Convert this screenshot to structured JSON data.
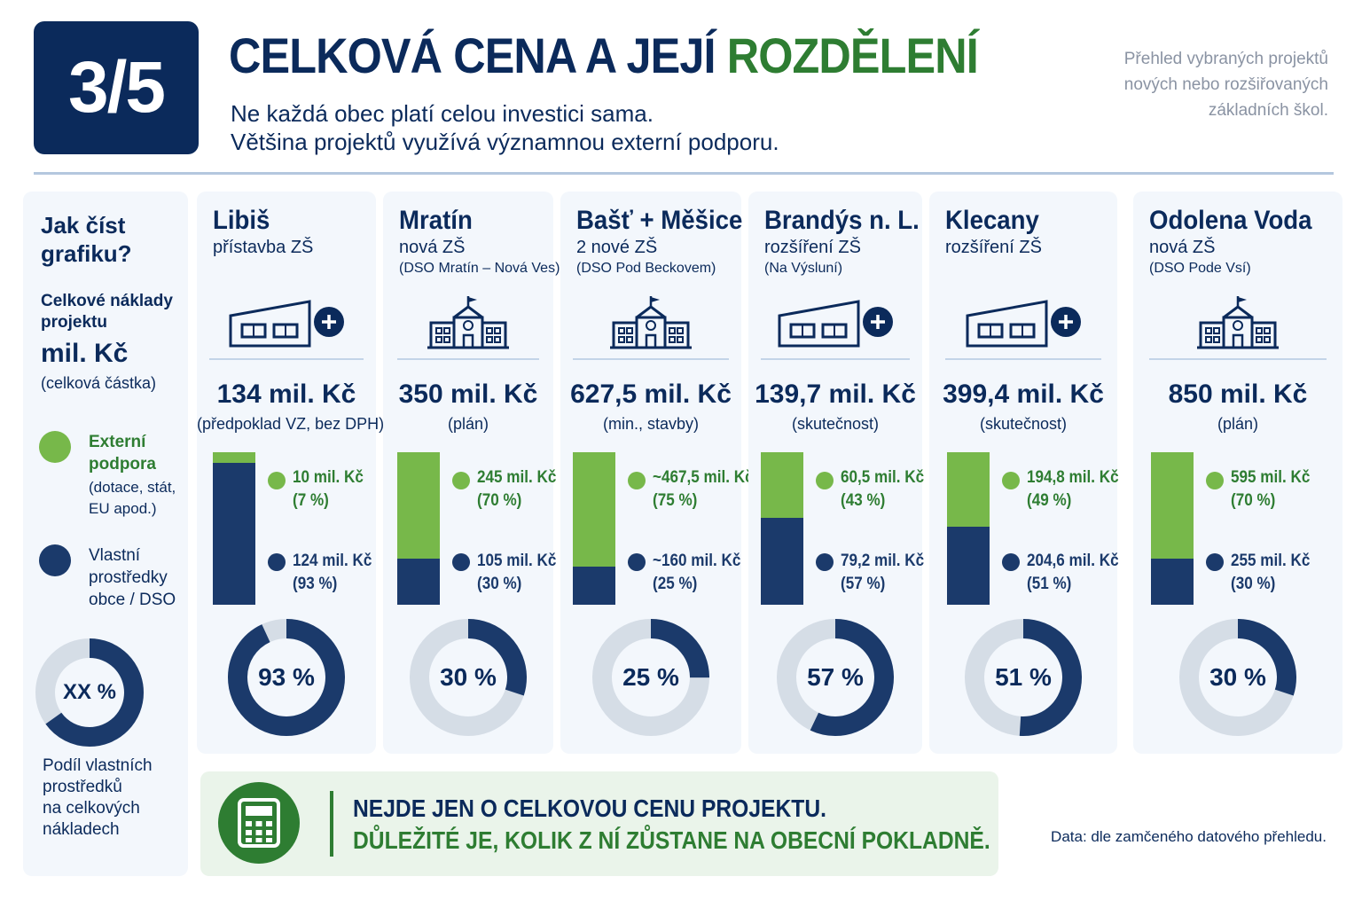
{
  "header": {
    "badge": "3/5",
    "title_main": "CELKOVÁ CENA A JEJÍ ",
    "title_accent": "ROZDĚLENÍ",
    "subtitle_line1": "Ne každá obec platí celou investici sama.",
    "subtitle_line2": "Většina projektů využívá významnou externí podporu.",
    "sidenote_line1": "Přehled vybraných projektů",
    "sidenote_line2": "nových nebo rozšiřovaných",
    "sidenote_line3": "základních škol."
  },
  "legend": {
    "question_line1": "Jak číst",
    "question_line2": "grafiku?",
    "cost_line1": "Celkové náklady",
    "cost_line2": "projektu",
    "unit": "mil. Kč",
    "unit_note": "(celková částka)",
    "external_line1": "Externí",
    "external_line2": "podpora",
    "external_note_line1": "(dotace, stát,",
    "external_note_line2": "EU apod.)",
    "own_line1": "Vlastní",
    "own_line2": "prostředky",
    "own_line3": "obce / DSO",
    "donut_label": "XX %",
    "share_line1": "Podíl vlastních",
    "share_line2": "prostředků",
    "share_line3": "na celkových",
    "share_line4": "nákladech"
  },
  "colors": {
    "navy": "#0b2a5b",
    "own_funds": "#1b3a6b",
    "external_support": "#77b84a",
    "accent_green": "#2e7d32",
    "donut_track": "#d5dde6"
  },
  "chart_data": {
    "type": "bar",
    "title": "CELKOVÁ CENA A JEJÍ ROZDĚLENÍ",
    "unit": "mil. Kč",
    "categories": [
      "Libiš",
      "Mratín",
      "Bašť + Měšice",
      "Brandýs n. L.",
      "Klecany",
      "Odolena Voda"
    ],
    "series": [
      {
        "name": "Externí podpora",
        "values": [
          10,
          245,
          467.5,
          60.5,
          194.8,
          595
        ]
      },
      {
        "name": "Vlastní prostředky obce / DSO",
        "values": [
          124,
          105,
          160,
          79.2,
          204.6,
          255
        ]
      }
    ],
    "own_share_percent": [
      93,
      30,
      25,
      57,
      51,
      30
    ],
    "totals": [
      134,
      350,
      627.5,
      139.7,
      399.4,
      850
    ]
  },
  "projects": [
    {
      "name": "Libiš",
      "type": "přístavba ZŠ",
      "dso": "",
      "icon": "building-extension-icon",
      "total": "134 mil. Kč",
      "basis": "(předpoklad VZ, bez DPH)",
      "ext_value": "10 mil. Kč",
      "ext_pct": "(7 %)",
      "own_value": "124 mil. Kč",
      "own_pct": "(93 %)",
      "ext_share": 0.07,
      "own_share": 0.93,
      "donut": "93 %"
    },
    {
      "name": "Mratín",
      "type": "nová ZŠ",
      "dso": "(DSO Mratín – Nová Ves)",
      "icon": "school-building-icon",
      "total": "350 mil. Kč",
      "basis": "(plán)",
      "ext_value": "245 mil. Kč",
      "ext_pct": "(70 %)",
      "own_value": "105 mil. Kč",
      "own_pct": "(30 %)",
      "ext_share": 0.7,
      "own_share": 0.3,
      "donut": "30 %"
    },
    {
      "name": "Bašť + Měšice",
      "type": "2 nové ZŠ",
      "dso": "(DSO Pod Beckovem)",
      "icon": "school-building-icon",
      "total": "627,5 mil. Kč",
      "basis": "(min., stavby)",
      "ext_value": "~467,5 mil. Kč",
      "ext_pct": "(75 %)",
      "own_value": "~160 mil. Kč",
      "own_pct": "(25 %)",
      "ext_share": 0.75,
      "own_share": 0.25,
      "donut": "25 %"
    },
    {
      "name": "Brandýs n. L.",
      "type": "rozšíření ZŠ",
      "dso": "(Na Výsluní)",
      "icon": "building-extension-icon",
      "total": "139,7 mil. Kč",
      "basis": "(skutečnost)",
      "ext_value": "60,5 mil. Kč",
      "ext_pct": "(43 %)",
      "own_value": "79,2 mil. Kč",
      "own_pct": "(57 %)",
      "ext_share": 0.43,
      "own_share": 0.57,
      "donut": "57 %"
    },
    {
      "name": "Klecany",
      "type": "rozšíření ZŠ",
      "dso": "",
      "icon": "building-extension-icon",
      "total": "399,4 mil. Kč",
      "basis": "(skutečnost)",
      "ext_value": "194,8 mil. Kč",
      "ext_pct": "(49 %)",
      "own_value": "204,6 mil. Kč",
      "own_pct": "(51 %)",
      "ext_share": 0.49,
      "own_share": 0.51,
      "donut": "51 %"
    },
    {
      "name": "Odolena Voda",
      "type": "nová ZŠ",
      "dso": "(DSO Pode Vsí)",
      "icon": "school-building-icon",
      "total": "850 mil. Kč",
      "basis": "(plán)",
      "ext_value": "595 mil. Kč",
      "ext_pct": "(70 %)",
      "own_value": "255 mil. Kč",
      "own_pct": "(30 %)",
      "ext_share": 0.7,
      "own_share": 0.3,
      "donut": "30 %"
    }
  ],
  "bottom": {
    "line1": "NEJDE JEN O CELKOVOU CENU PROJEKTU.",
    "line2": "DŮLEŽITÉ JE, KOLIK Z NÍ ZŮSTANE NA OBECNÍ POKLADNĚ.",
    "icon": "calculator-icon"
  },
  "source": "Data: dle zamčeného datového přehledu."
}
